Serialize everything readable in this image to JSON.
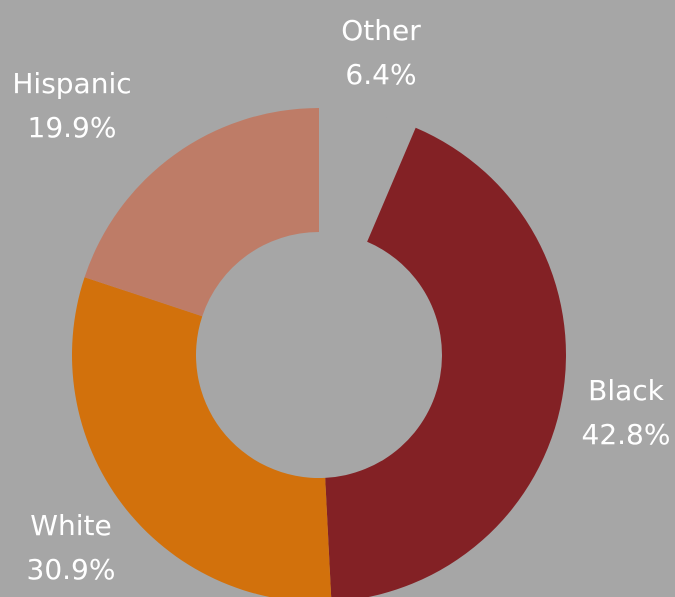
{
  "chart_data": {
    "type": "pie",
    "variant": "donut",
    "slices": [
      {
        "name": "Other",
        "value": 6.4,
        "value_label": "6.4%",
        "color": "#a6a6a6"
      },
      {
        "name": "Black",
        "value": 42.8,
        "value_label": "42.8%",
        "color": "#832125"
      },
      {
        "name": "White",
        "value": 30.9,
        "value_label": "30.9%",
        "color": "#d2710c"
      },
      {
        "name": "Hispanic",
        "value": 19.9,
        "value_label": "19.9%",
        "color": "#be7c67"
      }
    ],
    "start_angle_deg": 0,
    "direction": "clockwise",
    "legend": "none",
    "background_color": "#a6a6a6"
  }
}
